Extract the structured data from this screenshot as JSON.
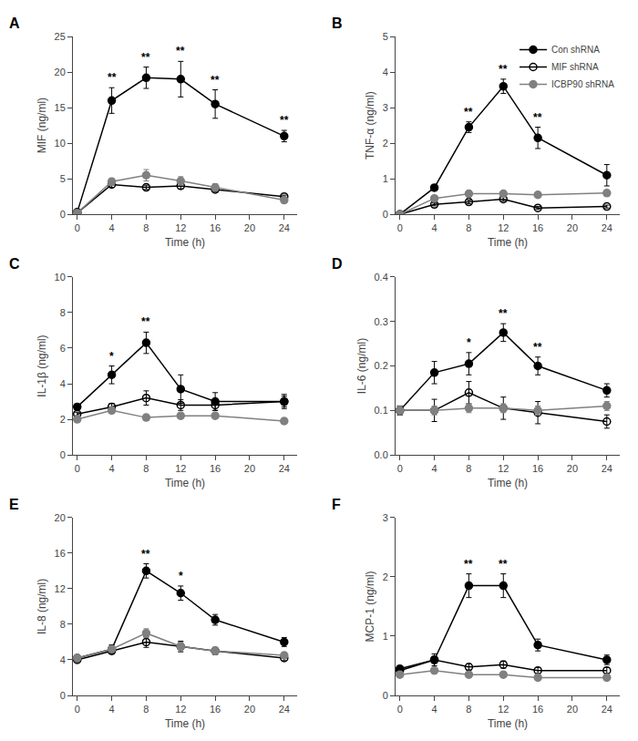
{
  "chart_data": [
    {
      "type": "line",
      "title": "A",
      "xlabel": "Time (h)",
      "ylabel": "MIF (ng/ml)",
      "x": [
        0,
        4,
        8,
        12,
        16,
        24
      ],
      "xlim": [
        -0.5,
        25.5
      ],
      "xticks": [
        0,
        4,
        8,
        12,
        16,
        20,
        24
      ],
      "ylim": [
        0,
        25
      ],
      "yticks": [
        0,
        5,
        10,
        15,
        20,
        25
      ],
      "grid": false,
      "series": [
        {
          "name": "Con shRNA",
          "color": "#000000",
          "marker": "circle",
          "values": [
            0.3,
            16.0,
            19.2,
            19.0,
            15.5,
            11.0
          ],
          "errors": [
            0.2,
            1.8,
            1.5,
            2.5,
            2.0,
            0.8
          ]
        },
        {
          "name": "MIF shRNA",
          "color": "#000000",
          "marker": "circle-open",
          "values": [
            0.2,
            4.2,
            3.8,
            4.0,
            3.5,
            2.5
          ],
          "errors": [
            0.1,
            0.4,
            0.3,
            0.4,
            0.3,
            0.2
          ]
        },
        {
          "name": "ICBP90 shRNA",
          "color": "#808080",
          "marker": "circle",
          "values": [
            0.2,
            4.6,
            5.5,
            4.7,
            3.8,
            2.0
          ],
          "errors": [
            0.1,
            0.5,
            0.8,
            0.6,
            0.5,
            0.3
          ]
        }
      ],
      "annotations": [
        {
          "x": 4,
          "text": "**"
        },
        {
          "x": 8,
          "text": "**"
        },
        {
          "x": 12,
          "text": "**"
        },
        {
          "x": 16,
          "text": "**"
        },
        {
          "x": 24,
          "text": "**"
        }
      ]
    },
    {
      "type": "line",
      "title": "B",
      "xlabel": "Time (h)",
      "ylabel": "TNF-α (ng/ml)",
      "x": [
        0,
        4,
        8,
        12,
        16,
        24
      ],
      "xlim": [
        -0.5,
        25.5
      ],
      "xticks": [
        0,
        4,
        8,
        12,
        16,
        20,
        24
      ],
      "ylim": [
        0,
        5
      ],
      "yticks": [
        0,
        1,
        2,
        3,
        4,
        5
      ],
      "grid": false,
      "legend": "upper right",
      "series": [
        {
          "name": "Con shRNA",
          "color": "#000000",
          "marker": "circle",
          "values": [
            0.0,
            0.75,
            2.45,
            3.6,
            2.15,
            1.1
          ],
          "errors": [
            0.0,
            0.08,
            0.15,
            0.2,
            0.3,
            0.3
          ]
        },
        {
          "name": "MIF shRNA",
          "color": "#000000",
          "marker": "circle-open",
          "values": [
            0.0,
            0.28,
            0.35,
            0.43,
            0.18,
            0.22
          ],
          "errors": [
            0.0,
            0.04,
            0.05,
            0.06,
            0.04,
            0.04
          ]
        },
        {
          "name": "ICBP90 shRNA",
          "color": "#808080",
          "marker": "circle",
          "values": [
            0.0,
            0.45,
            0.58,
            0.58,
            0.55,
            0.6
          ],
          "errors": [
            0.0,
            0.06,
            0.07,
            0.07,
            0.07,
            0.08
          ]
        }
      ],
      "annotations": [
        {
          "x": 8,
          "text": "**"
        },
        {
          "x": 12,
          "text": "**"
        },
        {
          "x": 16,
          "text": "**"
        }
      ]
    },
    {
      "type": "line",
      "title": "C",
      "xlabel": "Time (h)",
      "ylabel": "IL-1β (ng/ml)",
      "x": [
        0,
        4,
        8,
        12,
        16,
        24
      ],
      "xlim": [
        -0.5,
        25.5
      ],
      "xticks": [
        0,
        4,
        8,
        12,
        16,
        20,
        24
      ],
      "ylim": [
        0,
        10
      ],
      "yticks": [
        0,
        2,
        4,
        6,
        8,
        10
      ],
      "grid": false,
      "series": [
        {
          "name": "Con shRNA",
          "color": "#000000",
          "marker": "circle",
          "values": [
            2.7,
            4.5,
            6.3,
            3.7,
            3.0,
            3.0
          ],
          "errors": [
            0.15,
            0.5,
            0.6,
            0.8,
            0.5,
            0.4
          ]
        },
        {
          "name": "MIF shRNA",
          "color": "#000000",
          "marker": "circle-open",
          "values": [
            2.3,
            2.7,
            3.2,
            2.8,
            2.8,
            3.0
          ],
          "errors": [
            0.1,
            0.2,
            0.4,
            0.3,
            0.3,
            0.3
          ]
        },
        {
          "name": "ICBP90 shRNA",
          "color": "#808080",
          "marker": "circle",
          "values": [
            2.0,
            2.5,
            2.1,
            2.2,
            2.2,
            1.9
          ],
          "errors": [
            0.1,
            0.15,
            0.15,
            0.15,
            0.15,
            0.15
          ]
        }
      ],
      "annotations": [
        {
          "x": 4,
          "text": "*"
        },
        {
          "x": 8,
          "text": "**"
        }
      ]
    },
    {
      "type": "line",
      "title": "D",
      "xlabel": "Time (h)",
      "ylabel": "IL-6 (ng/ml)",
      "x": [
        0,
        4,
        8,
        12,
        16,
        24
      ],
      "xlim": [
        -0.5,
        25.5
      ],
      "xticks": [
        0,
        4,
        8,
        12,
        16,
        20,
        24
      ],
      "ylim": [
        0,
        0.4
      ],
      "yticks": [
        {
          "value": 0,
          "label": "0.0"
        },
        0.1,
        0.2,
        0.3,
        0.4
      ],
      "grid": false,
      "series": [
        {
          "name": "Con shRNA",
          "color": "#000000",
          "marker": "circle",
          "values": [
            0.1,
            0.185,
            0.205,
            0.275,
            0.2,
            0.145
          ],
          "errors": [
            0.01,
            0.025,
            0.025,
            0.02,
            0.02,
            0.015
          ]
        },
        {
          "name": "MIF shRNA",
          "color": "#000000",
          "marker": "circle-open",
          "values": [
            0.1,
            0.1,
            0.14,
            0.105,
            0.095,
            0.075
          ],
          "errors": [
            0.01,
            0.025,
            0.025,
            0.025,
            0.025,
            0.015
          ]
        },
        {
          "name": "ICBP90 shRNA",
          "color": "#808080",
          "marker": "circle",
          "values": [
            0.1,
            0.1,
            0.105,
            0.105,
            0.1,
            0.11
          ],
          "errors": [
            0.01,
            0.01,
            0.01,
            0.01,
            0.01,
            0.01
          ]
        }
      ],
      "annotations": [
        {
          "x": 8,
          "text": "*"
        },
        {
          "x": 12,
          "text": "**"
        },
        {
          "x": 16,
          "text": "**"
        }
      ]
    },
    {
      "type": "line",
      "title": "E",
      "xlabel": "Time (h)",
      "ylabel": "IL-8 (ng/ml)",
      "x": [
        0,
        4,
        8,
        12,
        16,
        24
      ],
      "xlim": [
        -0.5,
        25.5
      ],
      "xticks": [
        0,
        4,
        8,
        12,
        16,
        20,
        24
      ],
      "ylim": [
        0,
        20
      ],
      "yticks": [
        0,
        4,
        8,
        12,
        16,
        20
      ],
      "grid": false,
      "series": [
        {
          "name": "Con shRNA",
          "color": "#000000",
          "marker": "circle",
          "values": [
            4.2,
            5.2,
            14.0,
            11.5,
            8.5,
            6.0
          ],
          "errors": [
            0.3,
            0.5,
            0.8,
            0.8,
            0.6,
            0.5
          ]
        },
        {
          "name": "MIF shRNA",
          "color": "#000000",
          "marker": "circle-open",
          "values": [
            4.0,
            5.0,
            6.0,
            5.5,
            5.0,
            4.2
          ],
          "errors": [
            0.2,
            0.3,
            0.6,
            0.6,
            0.4,
            0.3
          ]
        },
        {
          "name": "ICBP90 shRNA",
          "color": "#808080",
          "marker": "circle",
          "values": [
            4.2,
            5.2,
            7.0,
            5.5,
            5.0,
            4.5
          ],
          "errors": [
            0.2,
            0.3,
            0.5,
            0.5,
            0.4,
            0.3
          ]
        }
      ],
      "annotations": [
        {
          "x": 8,
          "text": "**"
        },
        {
          "x": 12,
          "text": "*"
        }
      ]
    },
    {
      "type": "line",
      "title": "F",
      "xlabel": "Time (h)",
      "ylabel": "MCP-1 (ng/ml)",
      "x": [
        0,
        4,
        8,
        12,
        16,
        24
      ],
      "xlim": [
        -0.5,
        25.5
      ],
      "xticks": [
        0,
        4,
        8,
        12,
        16,
        20,
        24
      ],
      "ylim": [
        0,
        3
      ],
      "yticks": [
        0,
        1,
        2,
        3
      ],
      "grid": false,
      "series": [
        {
          "name": "Con shRNA",
          "color": "#000000",
          "marker": "circle",
          "values": [
            0.45,
            0.6,
            1.85,
            1.85,
            0.85,
            0.6
          ],
          "errors": [
            0.05,
            0.1,
            0.2,
            0.2,
            0.1,
            0.08
          ]
        },
        {
          "name": "MIF shRNA",
          "color": "#000000",
          "marker": "circle-open",
          "values": [
            0.42,
            0.6,
            0.48,
            0.52,
            0.42,
            0.42
          ],
          "errors": [
            0.04,
            0.06,
            0.05,
            0.06,
            0.05,
            0.05
          ]
        },
        {
          "name": "ICBP90 shRNA",
          "color": "#808080",
          "marker": "circle",
          "values": [
            0.35,
            0.42,
            0.35,
            0.35,
            0.3,
            0.3
          ],
          "errors": [
            0.04,
            0.05,
            0.04,
            0.04,
            0.04,
            0.04
          ]
        }
      ],
      "annotations": [
        {
          "x": 8,
          "text": "**"
        },
        {
          "x": 12,
          "text": "**"
        }
      ]
    }
  ]
}
